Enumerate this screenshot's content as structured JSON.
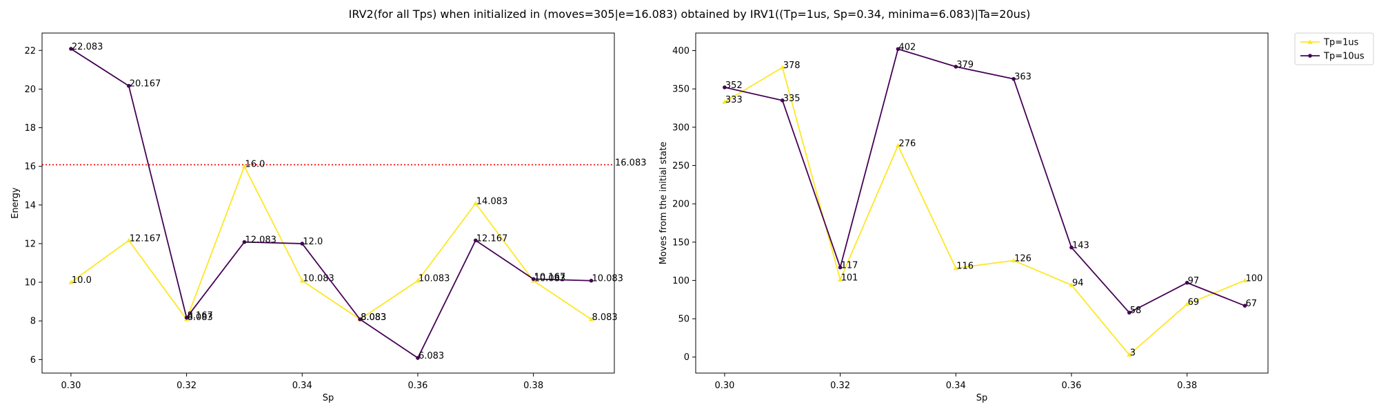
{
  "figure_title": "IRV2(for all Tps) when initialized in (moves=305|e=16.083) obtained by IRV1((Tp=1us, Sp=0.34, minima=6.083)|Ta=20us)",
  "chart_data": [
    {
      "type": "line",
      "xlabel": "Sp",
      "ylabel": "Energy",
      "xlim": [
        0.295,
        0.394
      ],
      "ylim": [
        5.3,
        22.9
      ],
      "xticks": [
        0.3,
        0.32,
        0.34,
        0.36,
        0.38
      ],
      "xtick_labels": [
        "0.30",
        "0.32",
        "0.34",
        "0.36",
        "0.38"
      ],
      "yticks": [
        6,
        8,
        10,
        12,
        14,
        16,
        18,
        20,
        22
      ],
      "ytick_labels": [
        "6",
        "8",
        "10",
        "12",
        "14",
        "16",
        "18",
        "20",
        "22"
      ],
      "x": [
        0.3,
        0.31,
        0.32,
        0.33,
        0.34,
        0.35,
        0.36,
        0.37,
        0.38,
        0.39
      ],
      "grid": false,
      "series": [
        {
          "name": "Tp=1us",
          "color": "#fde725",
          "marker": "triangle",
          "values": [
            10.0,
            12.167,
            8.083,
            16.0,
            10.083,
            8.083,
            10.083,
            14.083,
            10.083,
            8.083
          ],
          "labels": [
            "10.0",
            "12.167",
            "8.083",
            "16.0",
            "10.083",
            "8.083",
            "10.083",
            "14.083",
            "10.083",
            "8.083"
          ]
        },
        {
          "name": "Tp=10us",
          "color": "#440154",
          "marker": "circle",
          "values": [
            22.083,
            20.167,
            8.167,
            12.083,
            12.0,
            8.083,
            6.083,
            12.167,
            10.167,
            10.083
          ],
          "labels": [
            "22.083",
            "20.167",
            "8.167",
            "12.083",
            "12.0",
            "8.083",
            "6.083",
            "12.167",
            "10.167",
            "10.083"
          ]
        }
      ],
      "reference_line": {
        "y": 16.083,
        "label": "16.083",
        "color": "#ff0000",
        "style": "dotted"
      }
    },
    {
      "type": "line",
      "xlabel": "Sp",
      "ylabel": "Moves from the initial state",
      "xlim": [
        0.295,
        0.394
      ],
      "ylim": [
        -20.9,
        422.9
      ],
      "xticks": [
        0.3,
        0.32,
        0.34,
        0.36,
        0.38
      ],
      "xtick_labels": [
        "0.30",
        "0.32",
        "0.34",
        "0.36",
        "0.38"
      ],
      "yticks": [
        0,
        50,
        100,
        150,
        200,
        250,
        300,
        350,
        400
      ],
      "ytick_labels": [
        "0",
        "50",
        "100",
        "150",
        "200",
        "250",
        "300",
        "350",
        "400"
      ],
      "x": [
        0.3,
        0.31,
        0.32,
        0.33,
        0.34,
        0.35,
        0.36,
        0.37,
        0.38,
        0.39
      ],
      "grid": false,
      "legend": "outside top-right",
      "series": [
        {
          "name": "Tp=1us",
          "color": "#fde725",
          "marker": "triangle",
          "values": [
            333,
            378,
            101,
            276,
            116,
            126,
            94,
            3,
            69,
            100
          ],
          "labels": [
            "333",
            "378",
            "101",
            "276",
            "116",
            "126",
            "94",
            "3",
            "69",
            "100"
          ]
        },
        {
          "name": "Tp=10us",
          "color": "#440154",
          "marker": "circle",
          "values": [
            352,
            335,
            117,
            402,
            379,
            363,
            143,
            58,
            97,
            67
          ],
          "labels": [
            "352",
            "335",
            "117",
            "402",
            "379",
            "363",
            "143",
            "58",
            "97",
            "67"
          ]
        }
      ]
    }
  ]
}
